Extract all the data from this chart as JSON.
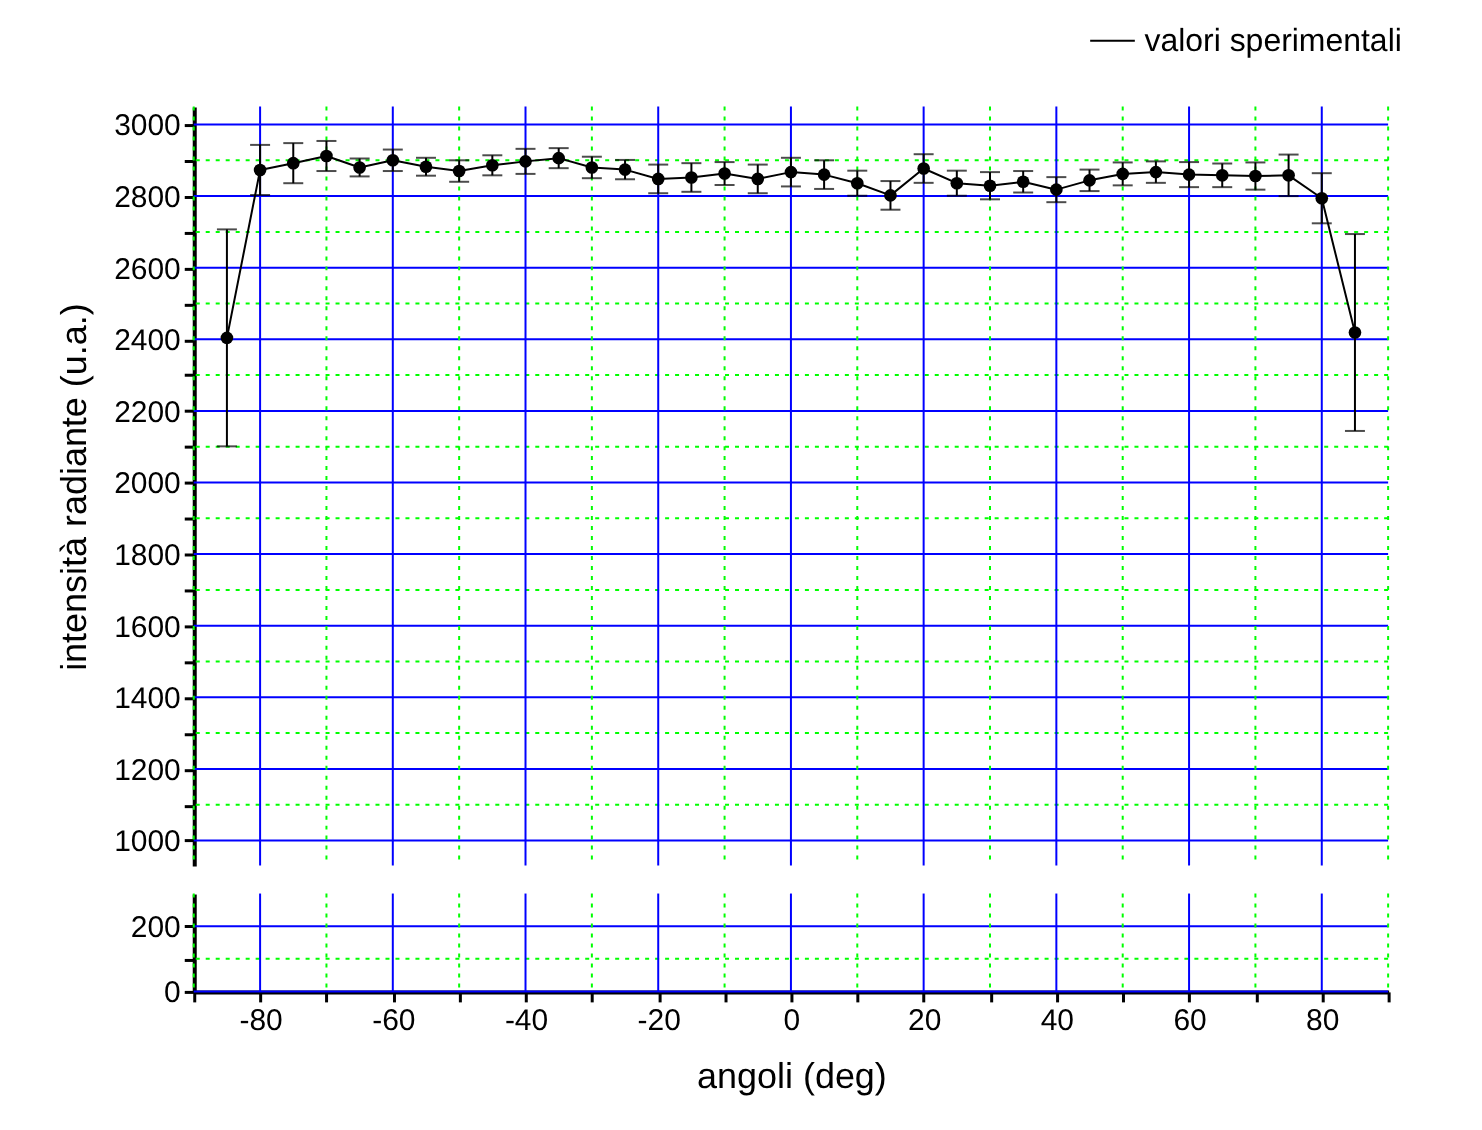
{
  "chart_data": [
    {
      "type": "line",
      "x": [
        -85,
        -80,
        -75,
        -70,
        -65,
        -60,
        -55,
        -50,
        -45,
        -40,
        -35,
        -30,
        -25,
        -20,
        -15,
        -10,
        -5,
        0,
        5,
        10,
        15,
        20,
        25,
        30,
        35,
        40,
        45,
        50,
        55,
        60,
        65,
        70,
        75,
        80,
        85
      ],
      "series": [
        {
          "name": "valori sperimentali",
          "color": "#000000",
          "values": [
            2404,
            2873,
            2892,
            2912,
            2880,
            2900,
            2882,
            2870,
            2886,
            2897,
            2906,
            2880,
            2874,
            2848,
            2852,
            2863,
            2848,
            2867,
            2860,
            2836,
            2802,
            2877,
            2836,
            2829,
            2840,
            2818,
            2844,
            2862,
            2867,
            2860,
            2858,
            2856,
            2858,
            2794,
            2419
          ],
          "errors": [
            303,
            70,
            56,
            42,
            25,
            30,
            25,
            30,
            28,
            35,
            28,
            30,
            27,
            40,
            40,
            32,
            40,
            40,
            40,
            35,
            40,
            40,
            35,
            38,
            30,
            35,
            30,
            32,
            30,
            35,
            33,
            38,
            58,
            70,
            275
          ]
        }
      ],
      "xlim": [
        -90,
        90
      ],
      "xticks": [
        {
          "value": -90,
          "label": null
        },
        -80,
        {
          "value": -70,
          "label": null
        },
        -60,
        {
          "value": -50,
          "label": null
        },
        -40,
        {
          "value": -30,
          "label": null
        },
        -20,
        {
          "value": -10,
          "label": null
        },
        0,
        {
          "value": 10,
          "label": null
        },
        20,
        {
          "value": 30,
          "label": null
        },
        40,
        {
          "value": 50,
          "label": null
        },
        60,
        {
          "value": 70,
          "label": null
        },
        80,
        {
          "value": 90,
          "label": null
        }
      ],
      "ylim": [
        930,
        3050
      ],
      "yticks": [
        1000,
        {
          "value": 1100,
          "label": null
        },
        1200,
        {
          "value": 1300,
          "label": null
        },
        1400,
        {
          "value": 1500,
          "label": null
        },
        1600,
        {
          "value": 1700,
          "label": null
        },
        1800,
        {
          "value": 1900,
          "label": null
        },
        2000,
        {
          "value": 2100,
          "label": null
        },
        2200,
        {
          "value": 2300,
          "label": null
        },
        2400,
        {
          "value": 2500,
          "label": null
        },
        2600,
        {
          "value": 2700,
          "label": null
        },
        2800,
        {
          "value": 2900,
          "label": null
        },
        3000
      ],
      "ylabel": "intensità radiante (u.a.)",
      "grid": true,
      "legend": "top right",
      "marker": "circle",
      "line_style": "solid",
      "tick_labels": "y"
    },
    {
      "type": "line",
      "xlim": [
        -90,
        90
      ],
      "xticks": [
        {
          "value": -90,
          "label": null
        },
        -80,
        {
          "value": -70,
          "label": null
        },
        -60,
        {
          "value": -50,
          "label": null
        },
        -40,
        {
          "value": -30,
          "label": null
        },
        -20,
        {
          "value": -10,
          "label": null
        },
        0,
        {
          "value": 10,
          "label": null
        },
        20,
        {
          "value": 30,
          "label": null
        },
        40,
        {
          "value": 50,
          "label": null
        },
        60,
        {
          "value": 70,
          "label": null
        },
        80,
        {
          "value": 90,
          "label": null
        }
      ],
      "ylim": [
        0,
        300
      ],
      "yticks": [
        0,
        {
          "value": 100,
          "label": null
        },
        200
      ],
      "xlabel": "angoli (deg)",
      "grid": true
    }
  ]
}
